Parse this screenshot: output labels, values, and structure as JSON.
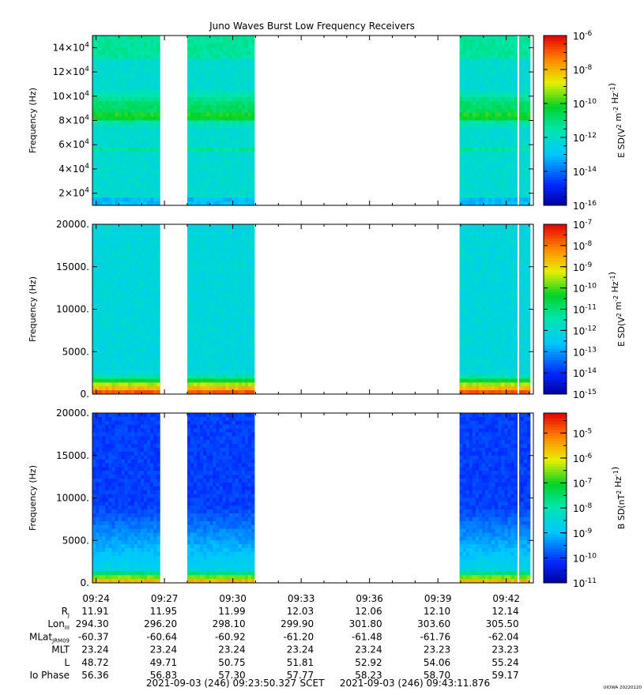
{
  "title": "Juno Waves Burst Low Frequency Receivers",
  "chart_data": [
    {
      "type": "heatmap",
      "panel": "top",
      "ylabel": "Frequency (Hz)",
      "ylim": [
        10000,
        150000
      ],
      "yticks": [
        {
          "value": 20000,
          "mant": "2×10",
          "exp": "4"
        },
        {
          "value": 40000,
          "mant": "4×10",
          "exp": "4"
        },
        {
          "value": 60000,
          "mant": "6×10",
          "exp": "4"
        },
        {
          "value": 80000,
          "mant": "8×10",
          "exp": "4"
        },
        {
          "value": 100000,
          "mant": "10×10",
          "exp": "4"
        },
        {
          "value": 120000,
          "mant": "12×10",
          "exp": "4"
        },
        {
          "value": 140000,
          "mant": "14×10",
          "exp": "4"
        }
      ],
      "colorbar": {
        "label_pre": "E SD(V",
        "label_mid": " m",
        "label_mid2": " Hz",
        "label_end": ")",
        "label_sup1": "2",
        "label_sup2": "-2",
        "label_sup3": "-1",
        "log_min": -16,
        "log_max": -6,
        "ticks": [
          {
            "value": -6,
            "mant": "10",
            "exp": "-6"
          },
          {
            "value": -8,
            "mant": "10",
            "exp": "-8"
          },
          {
            "value": -10,
            "mant": "10",
            "exp": "-10"
          },
          {
            "value": -12,
            "mant": "10",
            "exp": "-12"
          },
          {
            "value": -14,
            "mant": "10",
            "exp": "-14"
          },
          {
            "value": -16,
            "mant": "10",
            "exp": "-16"
          }
        ]
      }
    },
    {
      "type": "heatmap",
      "panel": "middle",
      "ylabel": "Frequency (Hz)",
      "ylim": [
        0,
        20000
      ],
      "yticks": [
        {
          "value": 0,
          "label": "0."
        },
        {
          "value": 5000,
          "label": "5000."
        },
        {
          "value": 10000,
          "label": "10000."
        },
        {
          "value": 15000,
          "label": "15000."
        },
        {
          "value": 20000,
          "label": "20000."
        }
      ],
      "colorbar": {
        "label_pre": "E SD(V",
        "label_mid": " m",
        "label_mid2": " Hz",
        "label_end": ")",
        "label_sup1": "2",
        "label_sup2": "-2",
        "label_sup3": "-1",
        "log_min": -15,
        "log_max": -7,
        "ticks": [
          {
            "value": -7,
            "mant": "10",
            "exp": "-7"
          },
          {
            "value": -8,
            "mant": "10",
            "exp": "-8"
          },
          {
            "value": -9,
            "mant": "10",
            "exp": "-9"
          },
          {
            "value": -10,
            "mant": "10",
            "exp": "-10"
          },
          {
            "value": -11,
            "mant": "10",
            "exp": "-11"
          },
          {
            "value": -12,
            "mant": "10",
            "exp": "-12"
          },
          {
            "value": -13,
            "mant": "10",
            "exp": "-13"
          },
          {
            "value": -14,
            "mant": "10",
            "exp": "-14"
          },
          {
            "value": -15,
            "mant": "10",
            "exp": "-15"
          }
        ]
      }
    },
    {
      "type": "heatmap",
      "panel": "bottom",
      "ylabel": "Frequency (Hz)",
      "ylim": [
        0,
        20000
      ],
      "yticks": [
        {
          "value": 0,
          "label": "0."
        },
        {
          "value": 5000,
          "label": "5000."
        },
        {
          "value": 10000,
          "label": "10000."
        },
        {
          "value": 15000,
          "label": "15000."
        },
        {
          "value": 20000,
          "label": "20000."
        }
      ],
      "colorbar": {
        "label_pre": "B SD(nT",
        "label_mid": " Hz",
        "label_mid2": "",
        "label_end": ")",
        "label_sup1": "2",
        "label_sup2": "-1",
        "label_sup3": "",
        "log_min": -11,
        "log_max": -4.2,
        "ticks": [
          {
            "value": -5,
            "mant": "10",
            "exp": "-5"
          },
          {
            "value": -6,
            "mant": "10",
            "exp": "-6"
          },
          {
            "value": -7,
            "mant": "10",
            "exp": "-7"
          },
          {
            "value": -8,
            "mant": "10",
            "exp": "-8"
          },
          {
            "value": -9,
            "mant": "10",
            "exp": "-9"
          },
          {
            "value": -10,
            "mant": "10",
            "exp": "-10"
          },
          {
            "value": -11,
            "mant": "10",
            "exp": "-11"
          }
        ]
      }
    }
  ],
  "time_axis": {
    "start_minute": 23.84,
    "end_minute": 43.19,
    "data_spans_minutes": [
      [
        23.84,
        26.8
      ],
      [
        28.0,
        30.95
      ],
      [
        39.95,
        43.05
      ]
    ],
    "ticks": [
      {
        "minute": 24,
        "label": "09:24"
      },
      {
        "minute": 27,
        "label": "09:27"
      },
      {
        "minute": 30,
        "label": "09:30"
      },
      {
        "minute": 33,
        "label": "09:33"
      },
      {
        "minute": 36,
        "label": "09:36"
      },
      {
        "minute": 39,
        "label": "09:39"
      },
      {
        "minute": 42,
        "label": "09:42"
      }
    ]
  },
  "ephemeris": [
    {
      "label": "R",
      "sub": "J",
      "values": [
        "11.91",
        "11.95",
        "11.99",
        "12.03",
        "12.06",
        "12.10",
        "12.14"
      ]
    },
    {
      "label": "Lon",
      "sub": "III",
      "values": [
        "294.30",
        "296.20",
        "298.10",
        "299.90",
        "301.80",
        "303.60",
        "305.50"
      ]
    },
    {
      "label": "MLat",
      "sub": "JRM09",
      "values": [
        "-60.37",
        "-60.64",
        "-60.92",
        "-61.20",
        "-61.48",
        "-61.76",
        "-62.04"
      ]
    },
    {
      "label": "MLT",
      "sub": "",
      "values": [
        "23.24",
        "23.24",
        "23.24",
        "23.24",
        "23.24",
        "23.23",
        "23.23"
      ]
    },
    {
      "label": "L",
      "sub": "",
      "values": [
        "48.72",
        "49.71",
        "50.75",
        "51.81",
        "52.92",
        "54.06",
        "55.24"
      ]
    },
    {
      "label": "Io Phase",
      "sub": "",
      "values": [
        "56.36",
        "56.83",
        "57.30",
        "57.77",
        "58.23",
        "58.70",
        "59.17"
      ]
    }
  ],
  "footer": {
    "start": "2021-09-03 (246) 09:23:50.327",
    "mid": "SCET",
    "end": "2021-09-03 (246) 09:43:11.876",
    "credit": "UIOWA 20220120"
  },
  "colors": {
    "axis": "#000000",
    "background": "#ffffff"
  }
}
